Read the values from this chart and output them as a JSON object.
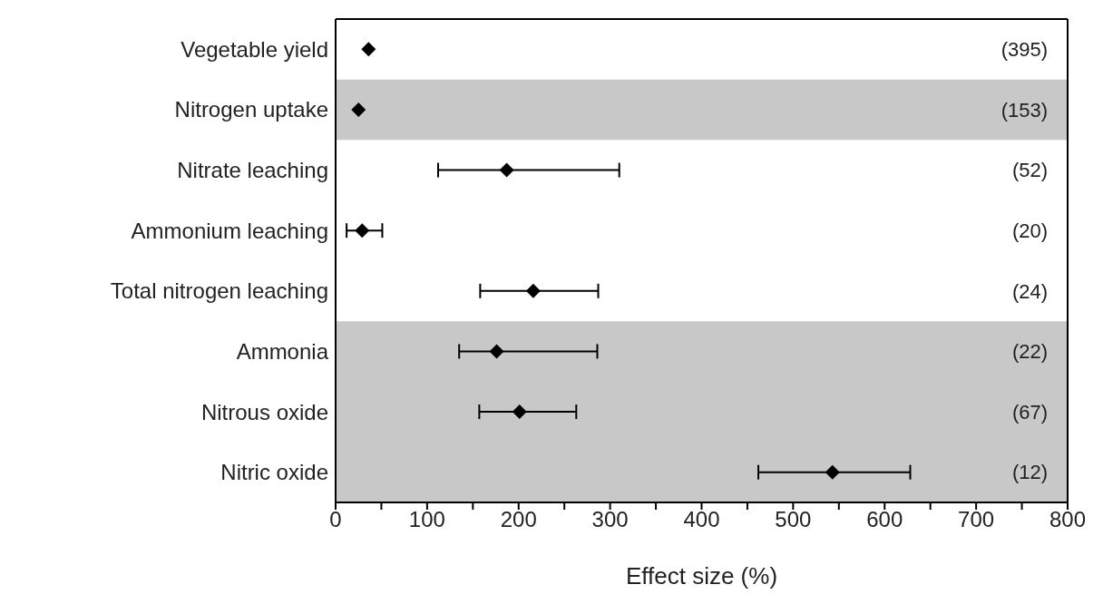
{
  "chart_data": {
    "type": "scatter",
    "orientation": "horizontal",
    "xlabel": "Effect size (%)",
    "categories": [
      "Vegetable yield",
      "Nitrogen uptake",
      "Nitrate leaching",
      "Ammonium leaching",
      "Total nitrogen leaching",
      "Ammonia",
      "Nitrous oxide",
      "Nitric oxide"
    ],
    "values": [
      36,
      25,
      187,
      29,
      216,
      176,
      201,
      543
    ],
    "errors": [
      null,
      null,
      [
        112,
        310
      ],
      [
        12,
        51
      ],
      [
        158,
        287
      ],
      [
        135,
        286
      ],
      [
        157,
        263
      ],
      [
        462,
        628
      ]
    ],
    "color": "#000000",
    "marker": "diamond",
    "xlim": [
      0,
      800
    ],
    "xticks": [
      0,
      {
        "value": 50,
        "label": null
      },
      100,
      {
        "value": 150,
        "label": null
      },
      200,
      {
        "value": 250,
        "label": null
      },
      300,
      {
        "value": 350,
        "label": null
      },
      400,
      {
        "value": 450,
        "label": null
      },
      500,
      {
        "value": 550,
        "label": null
      },
      600,
      {
        "value": 650,
        "label": null
      },
      700,
      {
        "value": 750,
        "label": null
      },
      800
    ],
    "bands": [
      {
        "axis": "y",
        "from": "Nitrogen uptake",
        "to": "Nitrogen uptake",
        "color": "#c8c8c8"
      },
      {
        "axis": "y",
        "from": "Ammonia",
        "to": "Nitric oxide",
        "color": "#c8c8c8"
      }
    ],
    "annotations": [
      "(395)",
      "(153)",
      "(52)",
      "(20)",
      "(24)",
      "(22)",
      "(67)",
      "(12)"
    ],
    "grid": false,
    "legend": false
  }
}
